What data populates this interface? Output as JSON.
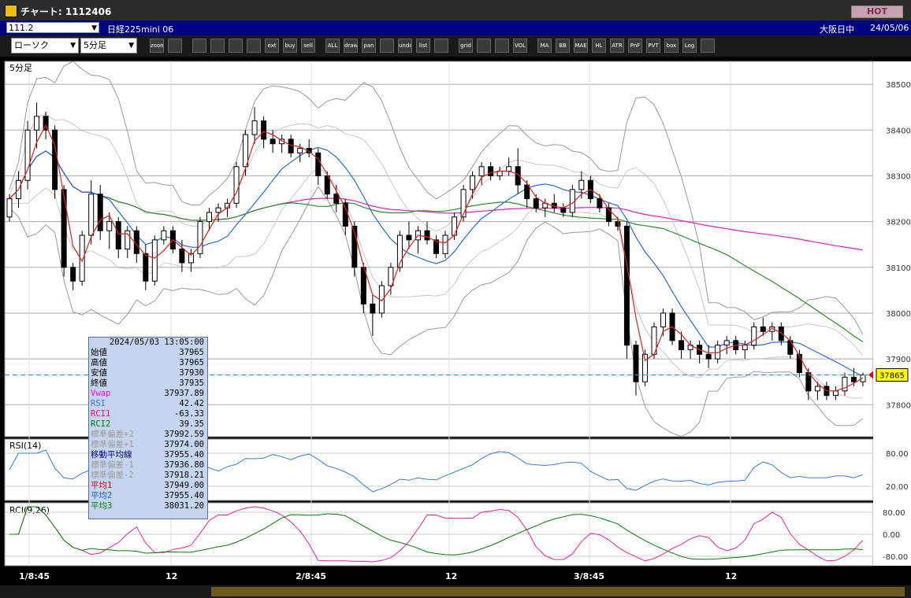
{
  "window": {
    "title": "チャート: 1112406",
    "hot_label": "HOT"
  },
  "infobar": {
    "code": "111.2",
    "contract": "日経225mini 06",
    "session": "大阪日中",
    "date": "24/05/06"
  },
  "toolbar": {
    "chart_type": "ローソク",
    "period": "5分足",
    "buttons": [
      "zoom",
      "bar-width",
      "candle",
      "search-q",
      "chart-type",
      "compare",
      "ext",
      "buy",
      "sell",
      "ALL",
      "draw",
      "pan",
      "cursor",
      "undo",
      "list",
      "trash",
      "grid",
      "color",
      "palette",
      "VOL",
      "MA",
      "BB",
      "MAE",
      "HL",
      "ATR",
      "PnF",
      "PVT",
      "box",
      "Log",
      "export"
    ]
  },
  "main_panel": {
    "label": "5分足",
    "price_ticks": [
      "38500",
      "38400",
      "38300",
      "38200",
      "38100",
      "38000",
      "37900",
      "37800"
    ],
    "current_price": "37865"
  },
  "rsi_panel": {
    "label": "RSI(14)",
    "ticks": [
      "80.00",
      "20.00"
    ]
  },
  "rci_panel": {
    "label": "RCI(9,26)",
    "ticks": [
      "80.00",
      "0.00",
      "-80.00"
    ]
  },
  "x_axis": {
    "labels": [
      "1/8:45",
      "12",
      "2/8:45",
      "12",
      "3/8:45",
      "12"
    ]
  },
  "data_window": {
    "datetime": "2024/05/03  13:05:00",
    "rows": [
      {
        "k": "始値",
        "v": "37965",
        "color": "#000000"
      },
      {
        "k": "高値",
        "v": "37965",
        "color": "#000000"
      },
      {
        "k": "安値",
        "v": "37930",
        "color": "#000000"
      },
      {
        "k": "終値",
        "v": "37935",
        "color": "#000000"
      },
      {
        "k": "Vwap",
        "v": "37937.89",
        "color": "#ff00ff"
      },
      {
        "k": "RSI",
        "v": "42.42",
        "color": "#3a7ad8"
      },
      {
        "k": "RCI1",
        "v": "-63.33",
        "color": "#ff0080"
      },
      {
        "k": "RCI2",
        "v": "39.35",
        "color": "#007a00"
      },
      {
        "k": "標準偏差+2",
        "v": "37992.59",
        "color": "#9a9a9a"
      },
      {
        "k": "標準偏差+1",
        "v": "37974.00",
        "color": "#9a9a9a"
      },
      {
        "k": "移動平均線",
        "v": "37955.40",
        "color": "#000080"
      },
      {
        "k": "標準偏差-1",
        "v": "37936.80",
        "color": "#9a9a9a"
      },
      {
        "k": "標準偏差-2",
        "v": "37918.21",
        "color": "#9a9a9a"
      },
      {
        "k": "平均1",
        "v": "37949.00",
        "color": "#d00000"
      },
      {
        "k": "平均2",
        "v": "37955.40",
        "color": "#1060d0"
      },
      {
        "k": "平均3",
        "v": "38031.20",
        "color": "#007a00"
      }
    ]
  },
  "colors": {
    "candle_up": "#ffffff",
    "candle_down": "#000000",
    "ma1": "#e02020",
    "ma2": "#2a6bd8",
    "ma3": "#2c8c2c",
    "vwap": "#e020c0",
    "bb": "#9a9a9a",
    "rsi": "#3a7ad8",
    "rci1": "#ff1f8a",
    "rci2": "#0a7a0a",
    "current_line": "#20a0a0"
  },
  "chart_data": {
    "type": "candlestick",
    "price_range": [
      37730,
      38550
    ],
    "candles": [
      {
        "o": 38210,
        "h": 38260,
        "l": 38200,
        "c": 38250
      },
      {
        "o": 38250,
        "h": 38310,
        "l": 38230,
        "c": 38290
      },
      {
        "o": 38290,
        "h": 38420,
        "l": 38270,
        "c": 38400
      },
      {
        "o": 38400,
        "h": 38460,
        "l": 38360,
        "c": 38430
      },
      {
        "o": 38430,
        "h": 38440,
        "l": 38380,
        "c": 38400
      },
      {
        "o": 38400,
        "h": 38410,
        "l": 38250,
        "c": 38270
      },
      {
        "o": 38270,
        "h": 38280,
        "l": 38080,
        "c": 38100
      },
      {
        "o": 38100,
        "h": 38110,
        "l": 38050,
        "c": 38070
      },
      {
        "o": 38070,
        "h": 38180,
        "l": 38060,
        "c": 38170
      },
      {
        "o": 38170,
        "h": 38290,
        "l": 38150,
        "c": 38260
      },
      {
        "o": 38260,
        "h": 38280,
        "l": 38160,
        "c": 38180
      },
      {
        "o": 38180,
        "h": 38220,
        "l": 38140,
        "c": 38200
      },
      {
        "o": 38200,
        "h": 38210,
        "l": 38120,
        "c": 38140
      },
      {
        "o": 38140,
        "h": 38190,
        "l": 38120,
        "c": 38180
      },
      {
        "o": 38180,
        "h": 38190,
        "l": 38110,
        "c": 38130
      },
      {
        "o": 38130,
        "h": 38150,
        "l": 38050,
        "c": 38070
      },
      {
        "o": 38070,
        "h": 38170,
        "l": 38060,
        "c": 38160
      },
      {
        "o": 38160,
        "h": 38190,
        "l": 38150,
        "c": 38180
      },
      {
        "o": 38180,
        "h": 38190,
        "l": 38130,
        "c": 38140
      },
      {
        "o": 38140,
        "h": 38160,
        "l": 38090,
        "c": 38110
      },
      {
        "o": 38110,
        "h": 38140,
        "l": 38090,
        "c": 38130
      },
      {
        "o": 38130,
        "h": 38210,
        "l": 38120,
        "c": 38200
      },
      {
        "o": 38200,
        "h": 38230,
        "l": 38180,
        "c": 38220
      },
      {
        "o": 38220,
        "h": 38240,
        "l": 38200,
        "c": 38230
      },
      {
        "o": 38230,
        "h": 38250,
        "l": 38210,
        "c": 38240
      },
      {
        "o": 38240,
        "h": 38330,
        "l": 38230,
        "c": 38320
      },
      {
        "o": 38320,
        "h": 38400,
        "l": 38300,
        "c": 38390
      },
      {
        "o": 38390,
        "h": 38450,
        "l": 38370,
        "c": 38420
      },
      {
        "o": 38420,
        "h": 38430,
        "l": 38360,
        "c": 38380
      },
      {
        "o": 38380,
        "h": 38400,
        "l": 38350,
        "c": 38370
      },
      {
        "o": 38370,
        "h": 38390,
        "l": 38350,
        "c": 38380
      },
      {
        "o": 38380,
        "h": 38390,
        "l": 38340,
        "c": 38350
      },
      {
        "o": 38350,
        "h": 38370,
        "l": 38330,
        "c": 38360
      },
      {
        "o": 38360,
        "h": 38380,
        "l": 38340,
        "c": 38350
      },
      {
        "o": 38350,
        "h": 38360,
        "l": 38280,
        "c": 38300
      },
      {
        "o": 38300,
        "h": 38310,
        "l": 38250,
        "c": 38260
      },
      {
        "o": 38260,
        "h": 38280,
        "l": 38220,
        "c": 38240
      },
      {
        "o": 38240,
        "h": 38250,
        "l": 38170,
        "c": 38190
      },
      {
        "o": 38190,
        "h": 38200,
        "l": 38080,
        "c": 38100
      },
      {
        "o": 38100,
        "h": 38110,
        "l": 38000,
        "c": 38020
      },
      {
        "o": 38020,
        "h": 38040,
        "l": 37950,
        "c": 38000
      },
      {
        "o": 38000,
        "h": 38070,
        "l": 37990,
        "c": 38060
      },
      {
        "o": 38060,
        "h": 38110,
        "l": 38040,
        "c": 38100
      },
      {
        "o": 38100,
        "h": 38180,
        "l": 38090,
        "c": 38170
      },
      {
        "o": 38170,
        "h": 38200,
        "l": 38140,
        "c": 38160
      },
      {
        "o": 38160,
        "h": 38190,
        "l": 38130,
        "c": 38180
      },
      {
        "o": 38180,
        "h": 38200,
        "l": 38150,
        "c": 38160
      },
      {
        "o": 38160,
        "h": 38170,
        "l": 38120,
        "c": 38130
      },
      {
        "o": 38130,
        "h": 38180,
        "l": 38120,
        "c": 38170
      },
      {
        "o": 38170,
        "h": 38220,
        "l": 38160,
        "c": 38210
      },
      {
        "o": 38210,
        "h": 38280,
        "l": 38200,
        "c": 38270
      },
      {
        "o": 38270,
        "h": 38310,
        "l": 38250,
        "c": 38300
      },
      {
        "o": 38300,
        "h": 38330,
        "l": 38280,
        "c": 38320
      },
      {
        "o": 38320,
        "h": 38330,
        "l": 38290,
        "c": 38300
      },
      {
        "o": 38300,
        "h": 38320,
        "l": 38290,
        "c": 38310
      },
      {
        "o": 38310,
        "h": 38340,
        "l": 38300,
        "c": 38320
      },
      {
        "o": 38320,
        "h": 38360,
        "l": 38260,
        "c": 38280
      },
      {
        "o": 38280,
        "h": 38290,
        "l": 38230,
        "c": 38250
      },
      {
        "o": 38250,
        "h": 38260,
        "l": 38220,
        "c": 38230
      },
      {
        "o": 38230,
        "h": 38250,
        "l": 38210,
        "c": 38240
      },
      {
        "o": 38240,
        "h": 38260,
        "l": 38220,
        "c": 38230
      },
      {
        "o": 38230,
        "h": 38240,
        "l": 38210,
        "c": 38220
      },
      {
        "o": 38220,
        "h": 38280,
        "l": 38210,
        "c": 38270
      },
      {
        "o": 38270,
        "h": 38310,
        "l": 38250,
        "c": 38290
      },
      {
        "o": 38290,
        "h": 38300,
        "l": 38240,
        "c": 38250
      },
      {
        "o": 38250,
        "h": 38260,
        "l": 38220,
        "c": 38230
      },
      {
        "o": 38230,
        "h": 38240,
        "l": 38190,
        "c": 38200
      },
      {
        "o": 38200,
        "h": 38210,
        "l": 38180,
        "c": 38190
      },
      {
        "o": 38190,
        "h": 38200,
        "l": 37900,
        "c": 37930
      },
      {
        "o": 37930,
        "h": 37940,
        "l": 37820,
        "c": 37850
      },
      {
        "o": 37850,
        "h": 37920,
        "l": 37840,
        "c": 37910
      },
      {
        "o": 37910,
        "h": 37980,
        "l": 37900,
        "c": 37970
      },
      {
        "o": 37970,
        "h": 38010,
        "l": 37950,
        "c": 38000
      },
      {
        "o": 38000,
        "h": 38010,
        "l": 37930,
        "c": 37940
      },
      {
        "o": 37940,
        "h": 37960,
        "l": 37900,
        "c": 37920
      },
      {
        "o": 37920,
        "h": 37940,
        "l": 37900,
        "c": 37930
      },
      {
        "o": 37930,
        "h": 37940,
        "l": 37890,
        "c": 37910
      },
      {
        "o": 37910,
        "h": 37930,
        "l": 37880,
        "c": 37900
      },
      {
        "o": 37900,
        "h": 37940,
        "l": 37890,
        "c": 37930
      },
      {
        "o": 37930,
        "h": 37950,
        "l": 37910,
        "c": 37940
      },
      {
        "o": 37940,
        "h": 37950,
        "l": 37910,
        "c": 37920
      },
      {
        "o": 37920,
        "h": 37940,
        "l": 37900,
        "c": 37930
      },
      {
        "o": 37930,
        "h": 37980,
        "l": 37920,
        "c": 37970
      },
      {
        "o": 37970,
        "h": 37990,
        "l": 37950,
        "c": 37960
      },
      {
        "o": 37960,
        "h": 37980,
        "l": 37940,
        "c": 37970
      },
      {
        "o": 37970,
        "h": 37980,
        "l": 37930,
        "c": 37940
      },
      {
        "o": 37940,
        "h": 37950,
        "l": 37900,
        "c": 37910
      },
      {
        "o": 37910,
        "h": 37920,
        "l": 37860,
        "c": 37870
      },
      {
        "o": 37870,
        "h": 37880,
        "l": 37810,
        "c": 37830
      },
      {
        "o": 37830,
        "h": 37850,
        "l": 37810,
        "c": 37840
      },
      {
        "o": 37840,
        "h": 37850,
        "l": 37810,
        "c": 37820
      },
      {
        "o": 37820,
        "h": 37840,
        "l": 37810,
        "c": 37830
      },
      {
        "o": 37830,
        "h": 37870,
        "l": 37820,
        "c": 37860
      },
      {
        "o": 37860,
        "h": 37880,
        "l": 37840,
        "c": 37850
      },
      {
        "o": 37850,
        "h": 37870,
        "l": 37840,
        "c": 37865
      }
    ]
  }
}
